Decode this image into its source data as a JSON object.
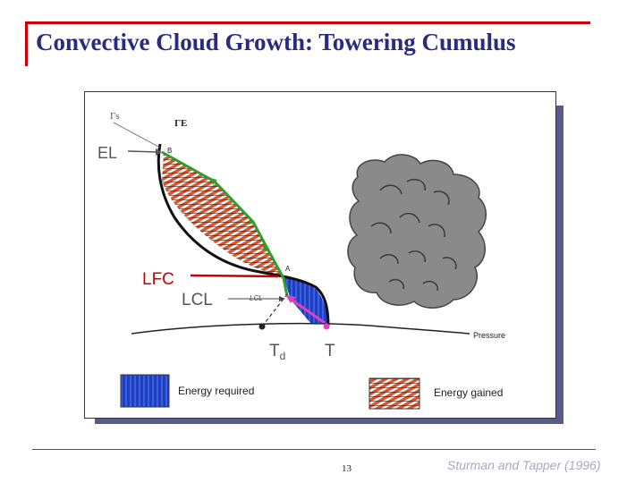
{
  "slide": {
    "title": "Convective Cloud Growth: Towering Cumulus",
    "page_number": "13",
    "credit": "Sturman and Tapper (1996)"
  },
  "diagram": {
    "labels": {
      "gamma_s": "Γs",
      "gamma_e": "ΓE",
      "el": "EL",
      "point_b": "B",
      "lfc": "LFC",
      "point_a": "A",
      "lcl": "LCL",
      "lcl_small": "LCL",
      "td": "Td",
      "t": "T",
      "pressure": "Pressure"
    },
    "legend": {
      "energy_required": "Energy required",
      "energy_gained": "Energy gained"
    },
    "colors": {
      "title": "#2a2a80",
      "accent_bar": "#cc0000",
      "energy_required": "#1f3fbf",
      "energy_gained": "#e0522a",
      "parcel_path": "#2ea02e",
      "lfc_line": "#cc0000",
      "lifting_arrow": "#e040c0",
      "cloud": "#8a8a8a"
    }
  }
}
